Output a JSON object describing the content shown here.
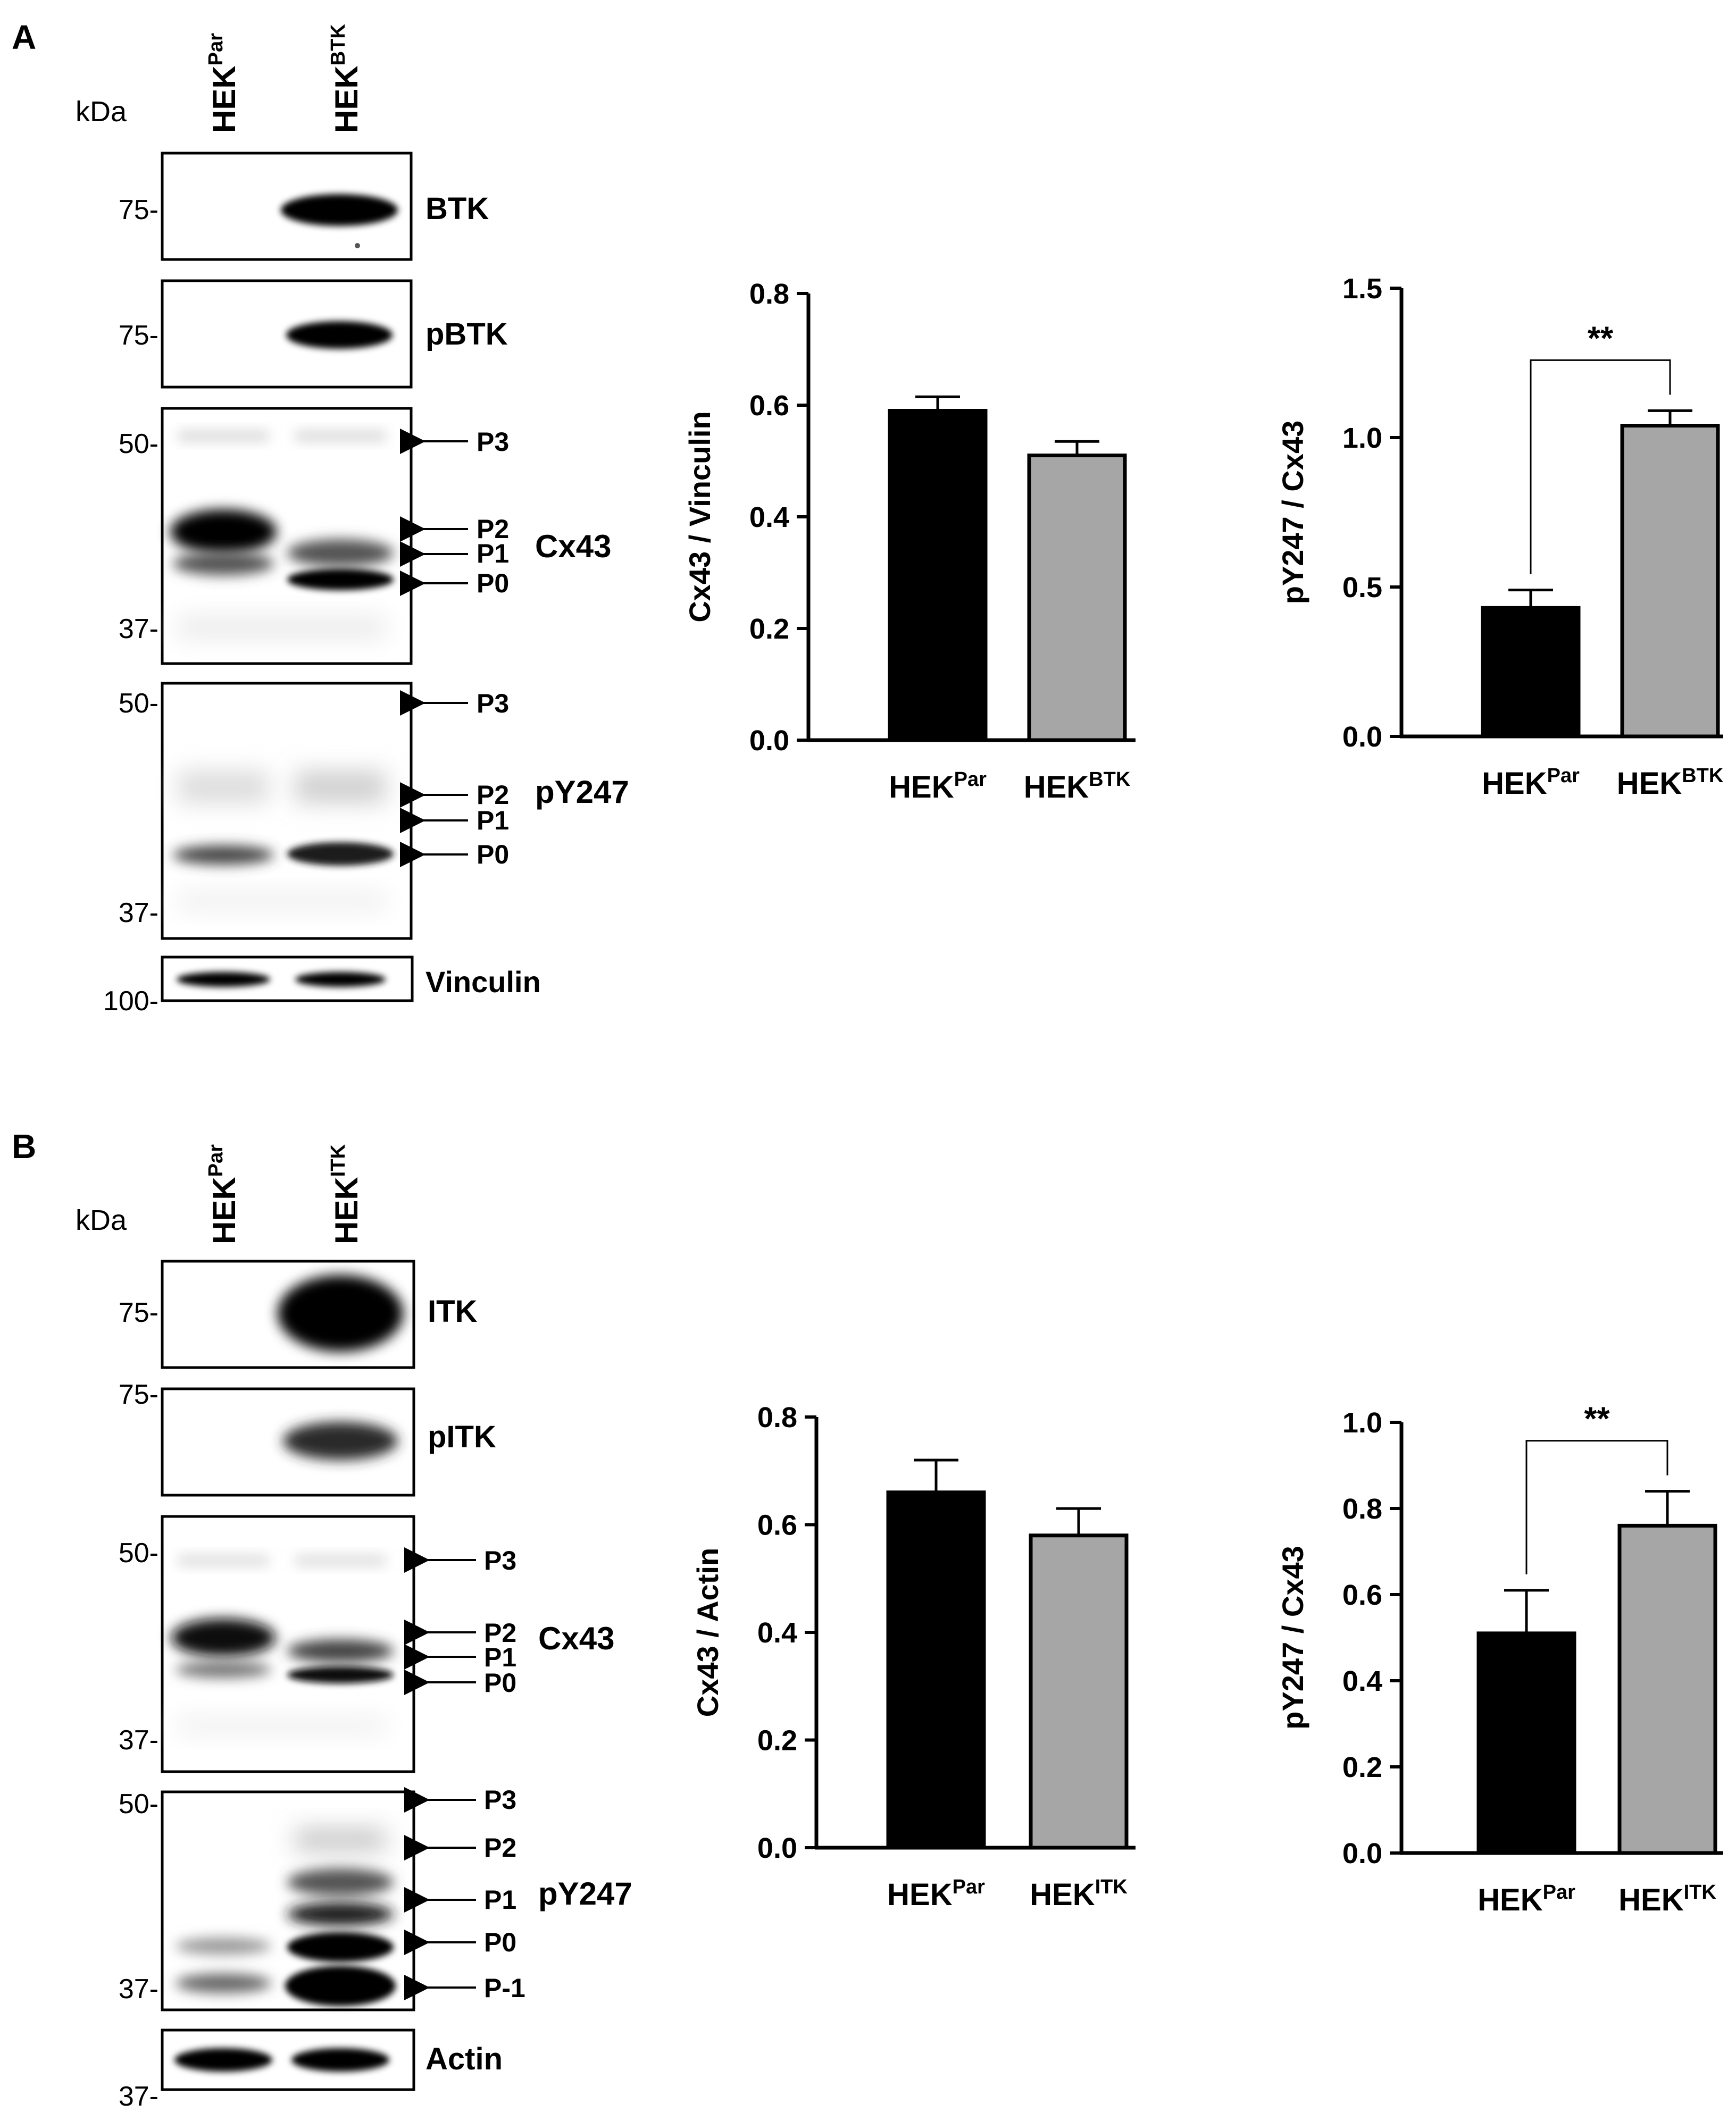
{
  "panels": [
    {
      "id": "A",
      "letter": "A",
      "lanes": [
        {
          "name": "HEK",
          "sup": "Par"
        },
        {
          "name": "HEK",
          "sup": "BTK"
        }
      ],
      "kda_label": "kDa",
      "blots": [
        {
          "id": "btk",
          "label": "BTK",
          "markers": [
            "75-"
          ],
          "band_intensity": [
            0.0,
            1.0
          ]
        },
        {
          "id": "pbtk",
          "label": "pBTK",
          "markers": [
            "75-"
          ],
          "band_intensity": [
            0.0,
            0.95
          ]
        },
        {
          "id": "cx43",
          "label": "Cx43",
          "markers": [
            "50-",
            "37-"
          ],
          "species": [
            "P3",
            "P2",
            "P1",
            "P0"
          ]
        },
        {
          "id": "py247",
          "label": "pY247",
          "markers": [
            "50-",
            "37-"
          ],
          "species": [
            "P3",
            "P2",
            "P1",
            "P0"
          ]
        },
        {
          "id": "vinculin",
          "label": "Vinculin",
          "markers": [
            "100-"
          ]
        }
      ],
      "charts": [
        {
          "id": "a-cx43",
          "chart_data": {
            "type": "bar",
            "categories": [
              {
                "name": "HEK",
                "sup": "Par"
              },
              {
                "name": "HEK",
                "sup": "BTK"
              }
            ],
            "values": [
              0.59,
              0.51
            ],
            "errors": [
              0.025,
              0.025
            ],
            "colors": [
              "#000000",
              "#a6a6a6"
            ],
            "ylabel": "Cx43 / Vinculin",
            "ylim": [
              0,
              0.8
            ],
            "yticks": [
              "0.0",
              "0.2",
              "0.4",
              "0.6",
              "0.8"
            ],
            "significance": ""
          }
        },
        {
          "id": "a-py247",
          "chart_data": {
            "type": "bar",
            "categories": [
              {
                "name": "HEK",
                "sup": "Par"
              },
              {
                "name": "HEK",
                "sup": "BTK"
              }
            ],
            "values": [
              0.43,
              1.04
            ],
            "errors": [
              0.06,
              0.05
            ],
            "colors": [
              "#000000",
              "#a6a6a6"
            ],
            "ylabel": "pY247 / Cx43",
            "ylim": [
              0,
              1.5
            ],
            "yticks": [
              "0.0",
              "0.5",
              "1.0",
              "1.5"
            ],
            "significance": "**"
          }
        }
      ]
    },
    {
      "id": "B",
      "letter": "B",
      "lanes": [
        {
          "name": "HEK",
          "sup": "Par"
        },
        {
          "name": "HEK",
          "sup": "ITK"
        }
      ],
      "kda_label": "kDa",
      "blots": [
        {
          "id": "itk",
          "label": "ITK",
          "markers": [
            "75-"
          ],
          "band_intensity": [
            0.0,
            1.0
          ]
        },
        {
          "id": "pitk",
          "label": "pITK",
          "markers": [
            "75-"
          ],
          "band_intensity": [
            0.0,
            0.7
          ]
        },
        {
          "id": "cx43",
          "label": "Cx43",
          "markers": [
            "50-",
            "37-"
          ],
          "species": [
            "P3",
            "P2",
            "P1",
            "P0"
          ]
        },
        {
          "id": "py247",
          "label": "pY247",
          "markers": [
            "50-",
            "37-"
          ],
          "species": [
            "P3",
            "P2",
            "P1",
            "P0",
            "P-1"
          ]
        },
        {
          "id": "actin",
          "label": "Actin",
          "markers": [
            "37-"
          ]
        }
      ],
      "charts": [
        {
          "id": "b-cx43",
          "chart_data": {
            "type": "bar",
            "categories": [
              {
                "name": "HEK",
                "sup": "Par"
              },
              {
                "name": "HEK",
                "sup": "ITK"
              }
            ],
            "values": [
              0.66,
              0.58
            ],
            "errors": [
              0.06,
              0.05
            ],
            "colors": [
              "#000000",
              "#a6a6a6"
            ],
            "ylabel": "Cx43 / Actin",
            "ylim": [
              0,
              0.8
            ],
            "yticks": [
              "0.0",
              "0.2",
              "0.4",
              "0.6",
              "0.8"
            ],
            "significance": ""
          }
        },
        {
          "id": "b-py247",
          "chart_data": {
            "type": "bar",
            "categories": [
              {
                "name": "HEK",
                "sup": "Par"
              },
              {
                "name": "HEK",
                "sup": "ITK"
              }
            ],
            "values": [
              0.51,
              0.76
            ],
            "errors": [
              0.1,
              0.08
            ],
            "colors": [
              "#000000",
              "#a6a6a6"
            ],
            "ylabel": "pY247 / Cx43",
            "ylim": [
              0,
              1.0
            ],
            "yticks": [
              "0.0",
              "0.2",
              "0.4",
              "0.6",
              "0.8",
              "1.0"
            ],
            "significance": "**"
          }
        }
      ]
    }
  ]
}
